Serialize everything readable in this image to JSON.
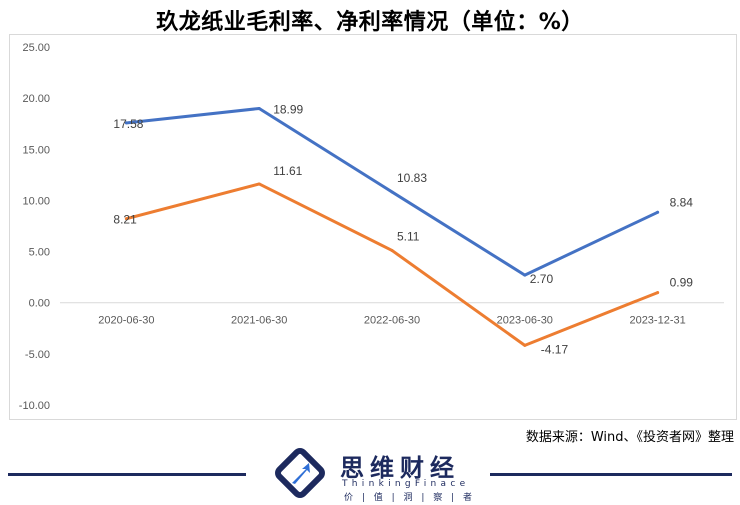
{
  "title": "玖龙纸业毛利率、净利率情况（单位：%）",
  "source": "数据来源：Wind、《投资者网》整理",
  "brand": {
    "name": "思维财经",
    "english": "ThinkingFinace",
    "slogan": "价 | 值 | 洞 | 察 | 者"
  },
  "colors": {
    "gross": "#4472c4",
    "net": "#ed7d31",
    "grid": "#d9d9d9",
    "footer": "#1d2a5e"
  },
  "chart_data": {
    "type": "line",
    "categories": [
      "2020-06-30",
      "2021-06-30",
      "2022-06-30",
      "2023-06-30",
      "2023-12-31"
    ],
    "series": [
      {
        "values": [
          17.58,
          18.99,
          10.83,
          2.7,
          8.84
        ],
        "labels": [
          "17.58",
          "18.99",
          "10.83",
          "2.70",
          "8.84"
        ]
      },
      {
        "values": [
          8.21,
          11.61,
          5.11,
          -4.17,
          0.99
        ],
        "labels": [
          "8.21",
          "11.61",
          "5.11",
          "-4.17",
          "0.99"
        ]
      }
    ],
    "yticks": [
      "25.00",
      "20.00",
      "15.00",
      "10.00",
      "5.00",
      "0.00",
      "-5.00",
      "-10.00"
    ],
    "ylim": [
      -10,
      25
    ],
    "grid": false,
    "legend": "none"
  }
}
